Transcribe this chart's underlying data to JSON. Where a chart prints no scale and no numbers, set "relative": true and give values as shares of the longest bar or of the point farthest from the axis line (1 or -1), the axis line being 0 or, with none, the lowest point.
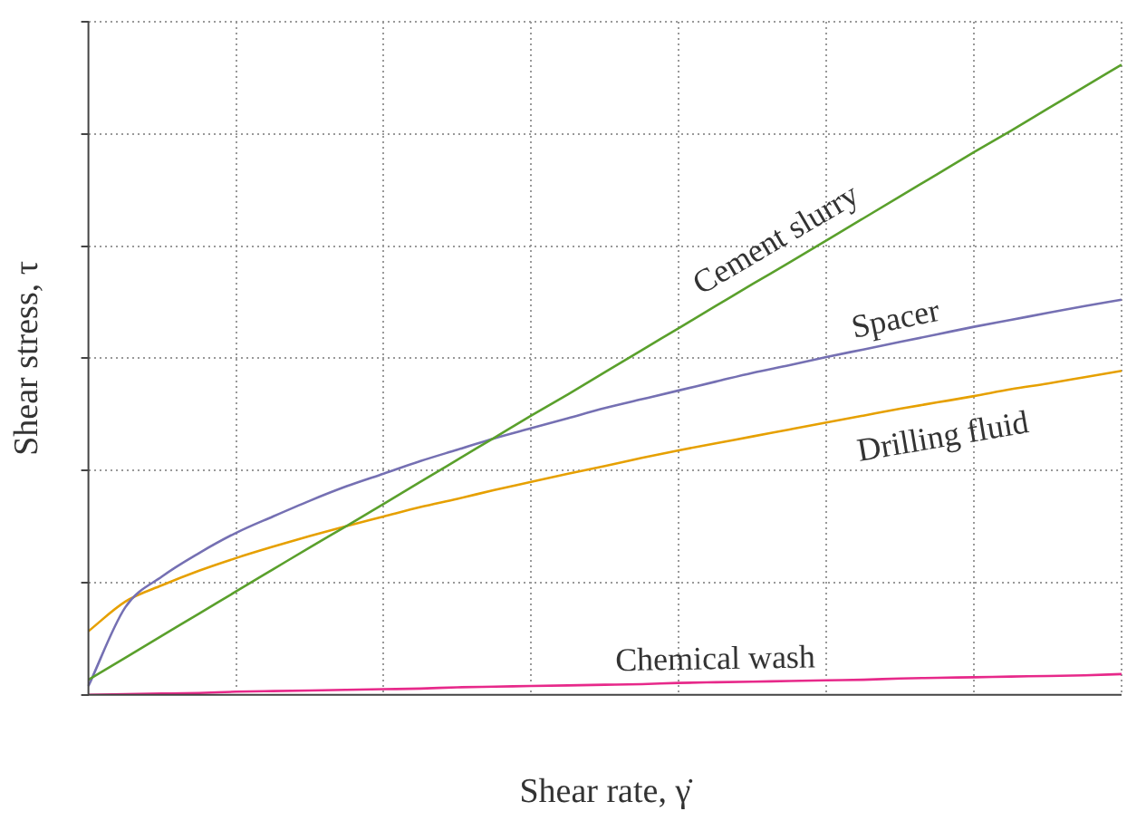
{
  "chart_data": {
    "type": "line",
    "relative": true,
    "xlabel": "Shear rate, γ̇",
    "ylabel": "Shear stress, τ",
    "grid": true,
    "legend": false,
    "marker": "none",
    "line_style": "solid",
    "categories": [
      null,
      null,
      null,
      null,
      null,
      null,
      null,
      null,
      null,
      null,
      null,
      null,
      null,
      null,
      null,
      null,
      null,
      null,
      null,
      null,
      null,
      null,
      null,
      null,
      null,
      null,
      null,
      null,
      null
    ],
    "series": [
      {
        "name": "Cement slurry",
        "color": "#5aa02c",
        "values": [
          0.024,
          0.059,
          0.094,
          0.129,
          0.164,
          0.199,
          0.234,
          0.268,
          0.303,
          0.338,
          0.373,
          0.408,
          0.443,
          0.477,
          0.512,
          0.547,
          0.582,
          0.617,
          0.652,
          0.686,
          0.721,
          0.756,
          0.791,
          0.826,
          0.861,
          0.895,
          0.93,
          0.965,
          1
        ]
      },
      {
        "name": "Spacer",
        "color": "#7570b3",
        "values": [
          0.014,
          0.139,
          0.188,
          0.225,
          0.257,
          0.283,
          0.308,
          0.331,
          0.351,
          0.371,
          0.389,
          0.407,
          0.423,
          0.439,
          0.455,
          0.469,
          0.483,
          0.497,
          0.511,
          0.523,
          0.536,
          0.548,
          0.56,
          0.572,
          0.584,
          0.595,
          0.606,
          0.617,
          0.627
        ]
      },
      {
        "name": "Drilling fluid",
        "color": "#e6a000",
        "values": [
          0.101,
          0.148,
          0.174,
          0.197,
          0.217,
          0.235,
          0.252,
          0.268,
          0.283,
          0.298,
          0.311,
          0.325,
          0.338,
          0.351,
          0.363,
          0.376,
          0.388,
          0.399,
          0.41,
          0.421,
          0.432,
          0.443,
          0.454,
          0.464,
          0.474,
          0.485,
          0.494,
          0.504,
          0.514
        ]
      },
      {
        "name": "Chemical wash",
        "color": "#e7298a",
        "values": [
          0,
          0.001,
          0.002,
          0.003,
          0.005,
          0.006,
          0.007,
          0.008,
          0.009,
          0.01,
          0.012,
          0.013,
          0.014,
          0.015,
          0.016,
          0.017,
          0.019,
          0.02,
          0.021,
          0.022,
          0.023,
          0.024,
          0.026,
          0.027,
          0.028,
          0.029,
          0.03,
          0.031,
          0.033
        ]
      }
    ]
  }
}
